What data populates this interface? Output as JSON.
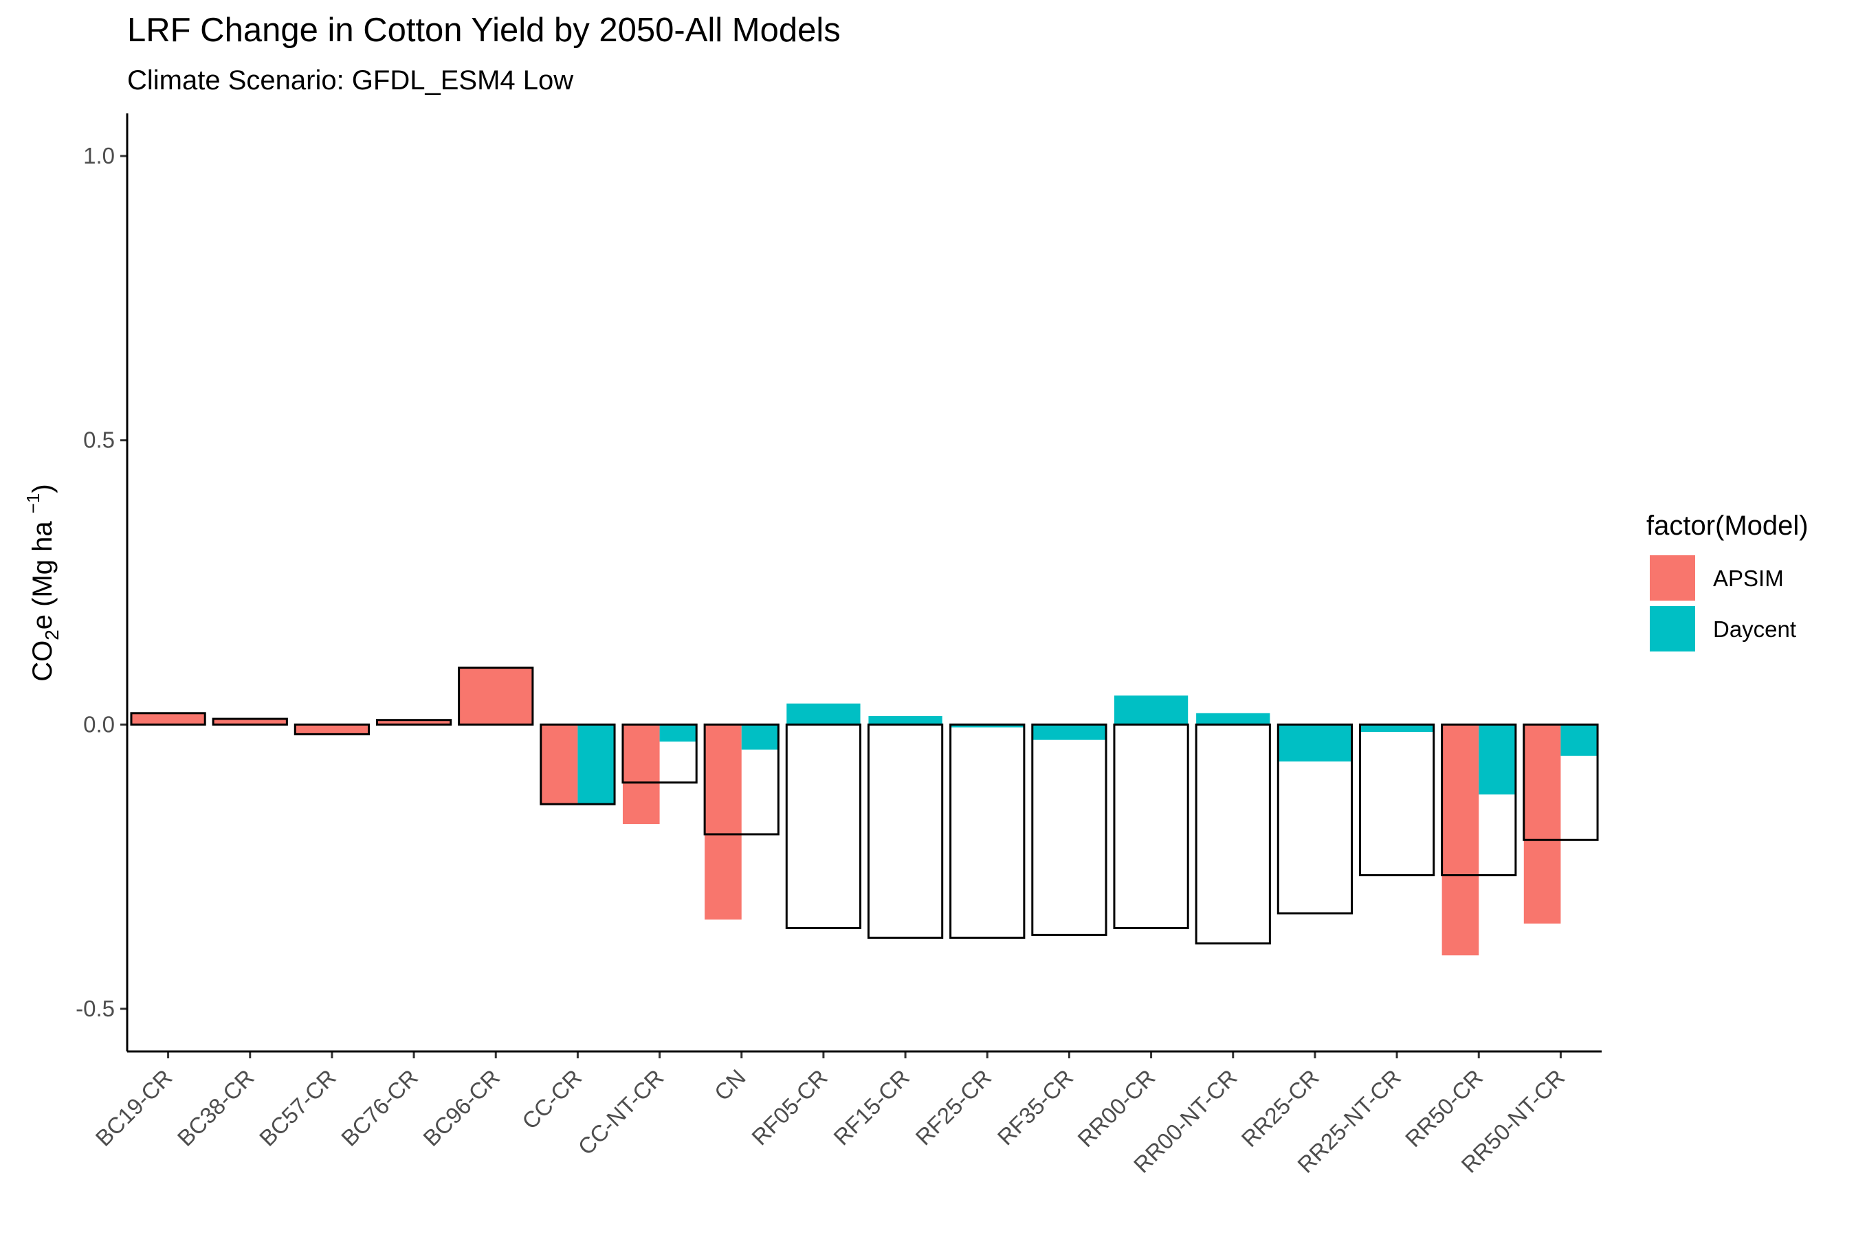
{
  "chart_data": {
    "type": "bar",
    "title": "LRF Change in Cotton Yield by 2050-All Models",
    "subtitle": "Climate Scenario: GFDL_ESM4 Low",
    "ylabel": {
      "pre": "CO",
      "sub": "2",
      "mid": "e (Mg ha ",
      "sup": "−1",
      "post": ")"
    },
    "ylim": [
      -0.575,
      1.075
    ],
    "yticks": [
      -0.5,
      0.0,
      0.5,
      1.0
    ],
    "ytick_labels": [
      "-0.5",
      "0.0",
      "0.5",
      "1.0"
    ],
    "grid": false,
    "legend": {
      "title": "factor(Model)",
      "position": "right"
    },
    "categories": [
      "BC19-CR",
      "BC38-CR",
      "BC57-CR",
      "BC76-CR",
      "BC96-CR",
      "CC-CR",
      "CC-NT-CR",
      "CN",
      "RF05-CR",
      "RF15-CR",
      "RF25-CR",
      "RF35-CR",
      "RR00-CR",
      "RR00-NT-CR",
      "RR25-CR",
      "RR25-NT-CR",
      "RR50-CR",
      "RR50-NT-CR"
    ],
    "series": [
      {
        "name": "APSIM",
        "color": "#F8766D",
        "values": [
          0.02,
          0.01,
          -0.017,
          0.008,
          0.1,
          -0.14,
          -0.175,
          -0.343,
          null,
          null,
          null,
          null,
          null,
          null,
          null,
          null,
          -0.406,
          -0.35
        ]
      },
      {
        "name": "Daycent",
        "color": "#00BFC4",
        "values": [
          null,
          null,
          null,
          null,
          null,
          -0.14,
          -0.03,
          -0.044,
          0.037,
          0.015,
          -0.005,
          -0.027,
          0.051,
          0.02,
          -0.065,
          -0.013,
          -0.123,
          -0.055
        ]
      }
    ],
    "outline_values": [
      0.02,
      0.01,
      -0.017,
      0.008,
      0.1,
      -0.14,
      -0.102,
      -0.193,
      -0.358,
      -0.375,
      -0.375,
      -0.37,
      -0.358,
      -0.385,
      -0.332,
      -0.265,
      -0.265,
      -0.203
    ]
  }
}
